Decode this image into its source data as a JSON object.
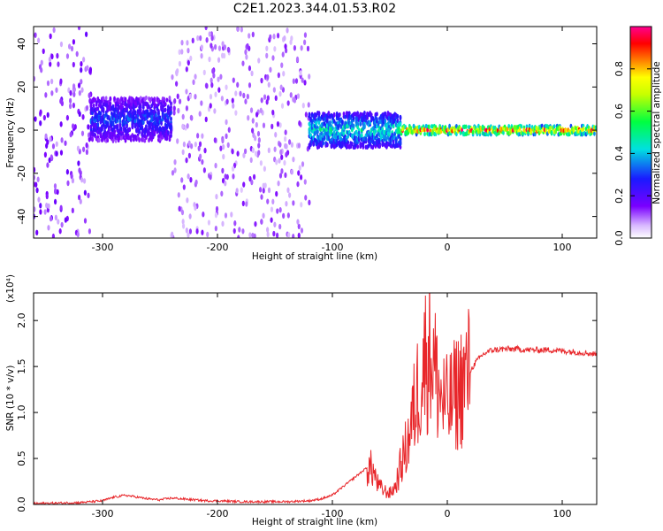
{
  "figure": {
    "title": "C2E1.2023.344.01.53.R02",
    "colors": {
      "frame": "#000000",
      "snr_line": "#e8262a",
      "background": "#ffffff"
    }
  },
  "chart_data": [
    {
      "type": "heatmap",
      "name": "spectrogram",
      "xlabel": "Height of straight line (km)",
      "ylabel": "Frequency (Hz)",
      "xlim": [
        -360,
        130
      ],
      "ylim": [
        -50,
        48
      ],
      "xticks": [
        -300,
        -200,
        -100,
        0,
        100
      ],
      "xtick_labels": [
        "-300",
        "-200",
        "-100",
        "0",
        "100"
      ],
      "yticks": [
        -40,
        -20,
        0,
        20,
        40
      ],
      "ytick_labels": [
        "-40",
        "-20",
        "0",
        "20",
        "40"
      ],
      "colorbar": {
        "label": "Normalized spectral amplitude",
        "range": [
          0.0,
          1.0
        ],
        "ticks": [
          0.0,
          0.2,
          0.4,
          0.6,
          0.8
        ],
        "tick_labels": [
          "0.0",
          "0.2",
          "0.4",
          "0.6",
          "0.8"
        ],
        "colormap": "rainbow (white→violet→blue→cyan→green→yellow→red→magenta)"
      },
      "features": [
        {
          "x_range": [
            -360,
            -310
          ],
          "freq_range": [
            -50,
            48
          ],
          "amplitude": 0.1,
          "description": "scattered noise"
        },
        {
          "x_range": [
            -240,
            -120
          ],
          "freq_range": [
            -50,
            48
          ],
          "amplitude": 0.08,
          "description": "scattered noise"
        },
        {
          "x_range": [
            -310,
            -240
          ],
          "freq_center": 5,
          "freq_halfwidth": 10,
          "amplitude": 0.3
        },
        {
          "x_range": [
            -120,
            -40
          ],
          "freq_center": 0,
          "freq_halfwidth": 8,
          "amplitude": 0.45
        },
        {
          "x_range": [
            -40,
            130
          ],
          "freq_center": 0,
          "freq_halfwidth": 2,
          "amplitude": 0.85
        }
      ]
    },
    {
      "type": "line",
      "name": "snr",
      "xlabel": "Height of straight line (km)",
      "ylabel": "SNR (10 * v/v)",
      "y_multiplier": "(x10⁴)",
      "xlim": [
        -360,
        130
      ],
      "ylim": [
        0,
        2.3
      ],
      "xticks": [
        -300,
        -200,
        -100,
        0,
        100
      ],
      "xtick_labels": [
        "-300",
        "-200",
        "-100",
        "0",
        "100"
      ],
      "yticks": [
        0.0,
        0.5,
        1.0,
        1.5,
        2.0
      ],
      "ytick_labels": [
        "0.0",
        "0.5",
        "1.0",
        "1.5",
        "2.0"
      ],
      "series": [
        {
          "color": "#e8262a",
          "x": [
            -360,
            -340,
            -320,
            -300,
            -290,
            -280,
            -270,
            -260,
            -250,
            -240,
            -230,
            -220,
            -210,
            -200,
            -180,
            -160,
            -140,
            -120,
            -110,
            -100,
            -95,
            -90,
            -85,
            -80,
            -75,
            -70,
            -65,
            -60,
            -55,
            -50,
            -45,
            -40,
            -35,
            -30,
            -25,
            -20,
            -15,
            -10,
            -5,
            0,
            5,
            10,
            15,
            20,
            25,
            30,
            35,
            40,
            50,
            60,
            70,
            80,
            90,
            100,
            110,
            120,
            130
          ],
          "y": [
            0.01,
            0.015,
            0.02,
            0.04,
            0.08,
            0.1,
            0.08,
            0.06,
            0.05,
            0.07,
            0.06,
            0.05,
            0.04,
            0.04,
            0.03,
            0.03,
            0.03,
            0.04,
            0.06,
            0.1,
            0.15,
            0.2,
            0.25,
            0.3,
            0.35,
            0.4,
            0.38,
            0.2,
            0.15,
            0.12,
            0.2,
            0.45,
            0.65,
            0.95,
            1.3,
            1.55,
            1.75,
            1.4,
            1.15,
            1.05,
            1.15,
            1.25,
            1.35,
            1.45,
            1.55,
            1.62,
            1.66,
            1.68,
            1.69,
            1.69,
            1.68,
            1.68,
            1.68,
            1.67,
            1.66,
            1.65,
            1.63
          ]
        }
      ]
    }
  ]
}
